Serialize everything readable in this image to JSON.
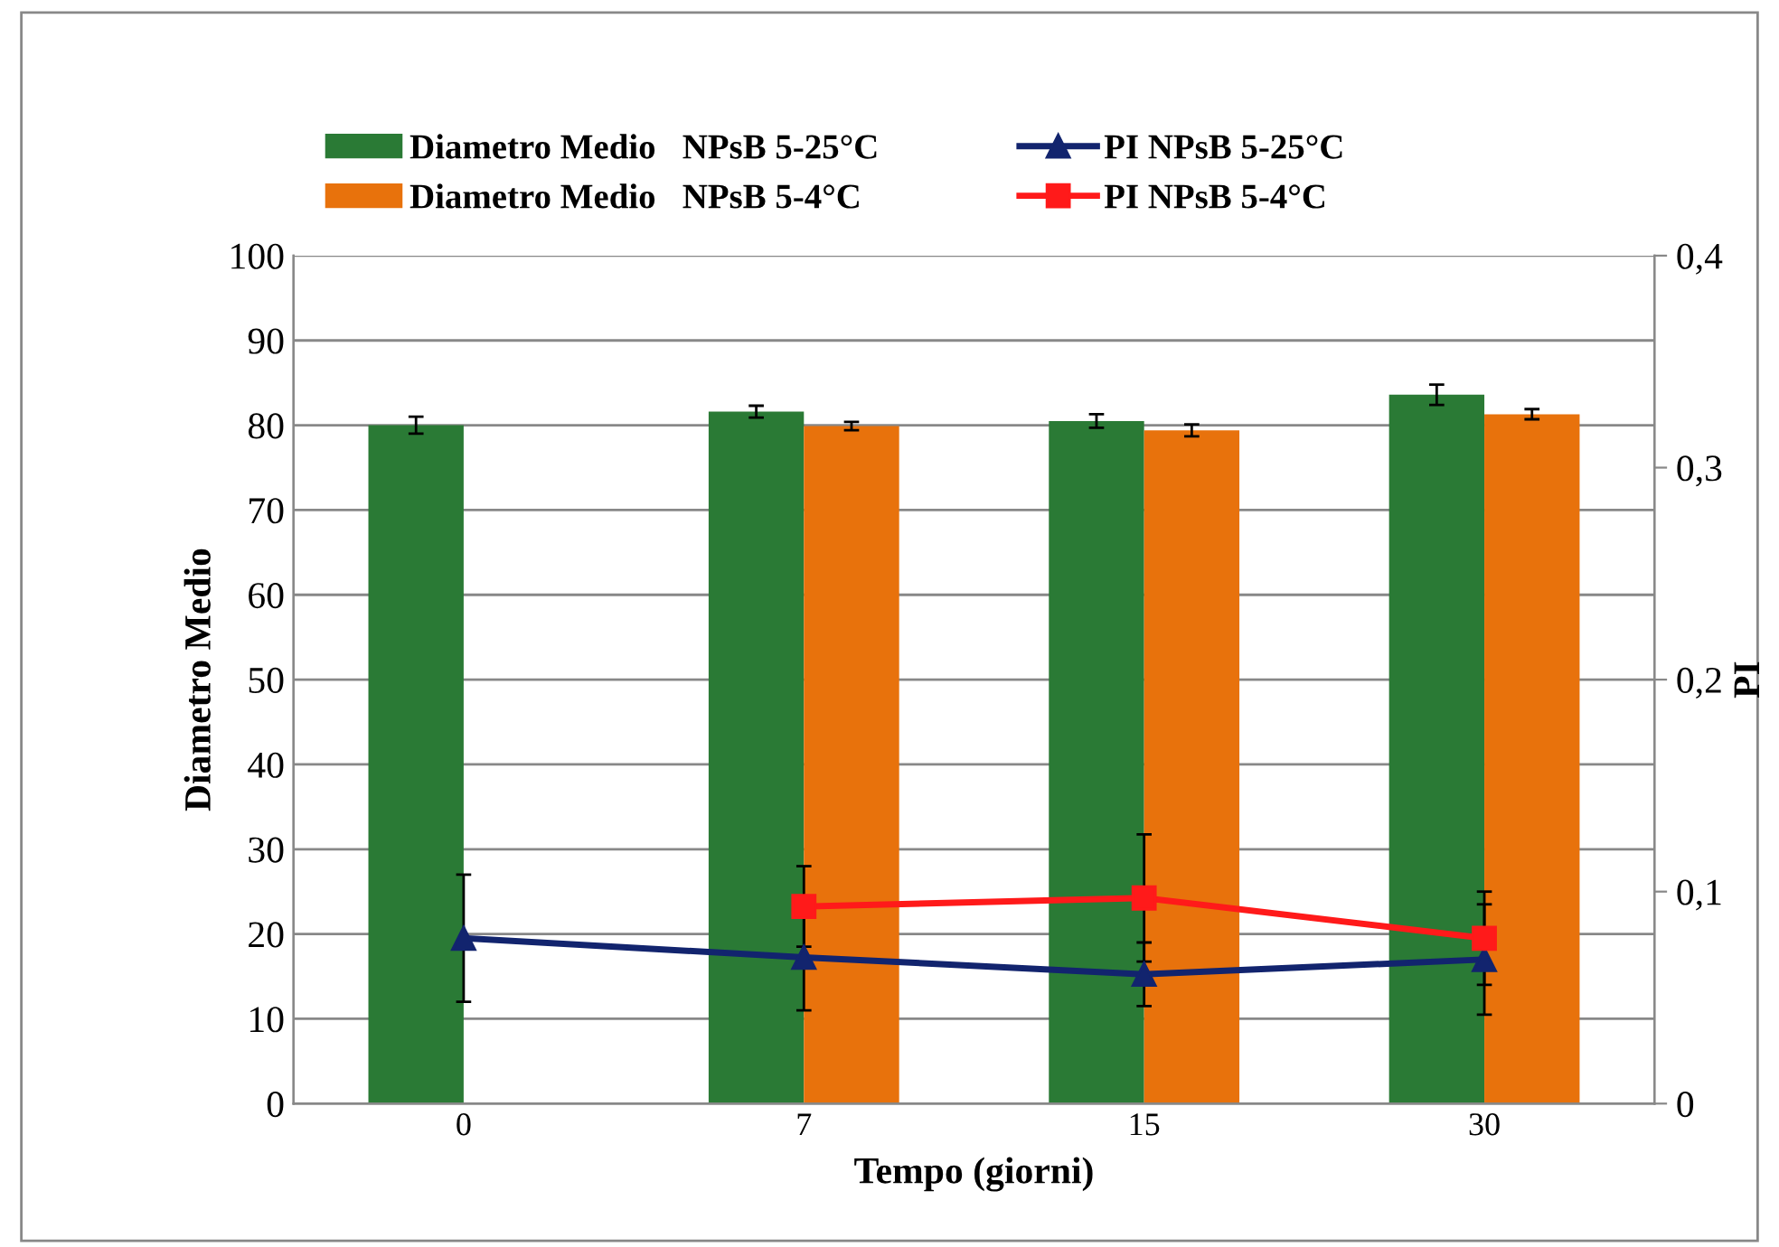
{
  "chart_data": {
    "type": "bar",
    "xlabel": "Tempo (giorni)",
    "ylabel": "Diametro Medio",
    "y2label": "PI",
    "categories": [
      "0",
      "7",
      "15",
      "30"
    ],
    "series": [
      {
        "name": "Diametro Medio   NPsB 5-25°C",
        "color": "#2a7a35",
        "values": [
          80,
          81.6,
          80.5,
          83.6
        ],
        "errors": [
          1,
          0.7,
          0.8,
          1.2
        ]
      },
      {
        "name": "Diametro Medio   NPsB 5-4°C",
        "color": "#e8720c",
        "values": [
          null,
          79.9,
          79.4,
          81.3
        ],
        "errors": [
          null,
          0.5,
          0.7,
          0.6
        ]
      },
      {
        "name": "PI NPsB 5-25°C",
        "type": "line",
        "axis": "y2",
        "color": "#12246e",
        "marker": "triangle",
        "values": [
          0.078,
          0.069,
          0.061,
          0.068
        ],
        "errors": [
          0.03,
          0.025,
          0.015,
          0.026
        ]
      },
      {
        "name": "PI NPsB 5-4°C",
        "type": "line",
        "axis": "y2",
        "color": "#ff1a1a",
        "marker": "square",
        "values": [
          null,
          0.093,
          0.097,
          0.078
        ],
        "errors": [
          null,
          0.019,
          0.03,
          0.022
        ]
      }
    ],
    "ylim": [
      0,
      100
    ],
    "yticks": [
      0,
      10,
      20,
      30,
      40,
      50,
      60,
      70,
      80,
      90,
      100
    ],
    "y2lim": [
      0,
      0.4
    ],
    "y2ticks": [
      {
        "value": 0,
        "label": "0"
      },
      {
        "value": 0.1,
        "label": "0,1"
      },
      {
        "value": 0.2,
        "label": "0,2"
      },
      {
        "value": 0.3,
        "label": "0,3"
      },
      {
        "value": 0.4,
        "label": "0,4"
      }
    ],
    "grid": "y",
    "legend": "top"
  }
}
